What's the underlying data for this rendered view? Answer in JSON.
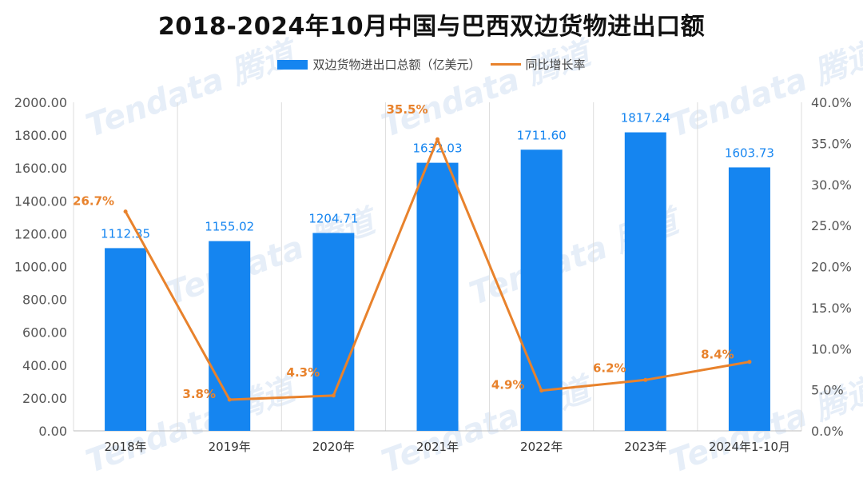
{
  "chart_data": {
    "type": "bar",
    "title": "2018-2024年10月中国与巴西双边货物进出口额",
    "categories": [
      "2018年",
      "2019年",
      "2020年",
      "2021年",
      "2022年",
      "2023年",
      "2024年1-10月"
    ],
    "series": [
      {
        "name": "双边货物进出口总额（亿美元）",
        "type": "bar",
        "axis": "left",
        "color": "#1585F0",
        "values": [
          1112.35,
          1155.02,
          1204.71,
          1632.03,
          1711.6,
          1817.24,
          1603.73
        ],
        "labels": [
          "1112.35",
          "1155.02",
          "1204.71",
          "1632.03",
          "1711.60",
          "1817.24",
          "1603.73"
        ]
      },
      {
        "name": "同比增长率",
        "type": "line",
        "axis": "right",
        "color": "#E8822C",
        "values": [
          26.7,
          3.8,
          4.3,
          35.5,
          4.9,
          6.2,
          8.4
        ],
        "labels": [
          "26.7%",
          "3.8%",
          "4.3%",
          "35.5%",
          "4.9%",
          "6.2%",
          "8.4%"
        ]
      }
    ],
    "left_axis": {
      "ylim": [
        0,
        2000
      ],
      "ticks": [
        "0.00",
        "200.00",
        "400.00",
        "600.00",
        "800.00",
        "1000.00",
        "1200.00",
        "1400.00",
        "1600.00",
        "1800.00",
        "2000.00"
      ]
    },
    "right_axis": {
      "ylim": [
        0,
        40
      ],
      "ticks": [
        "0.0%",
        "5.0%",
        "10.0%",
        "15.0%",
        "20.0%",
        "25.0%",
        "30.0%",
        "35.0%",
        "40.0%"
      ]
    },
    "grid": "vertical",
    "legend_position": "top"
  },
  "watermark": "Tendata 腾道",
  "colors": {
    "bar": "#1585F0",
    "line": "#E8822C",
    "bar_label": "#1585F0",
    "line_label": "#E8822C",
    "axis_text": "#555555",
    "grid": "#dddddd"
  }
}
